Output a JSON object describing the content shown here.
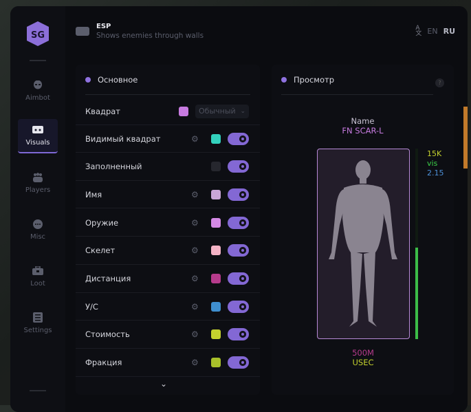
{
  "sidebar": {
    "logo": "SG",
    "items": [
      {
        "label": "Aimbot",
        "icon": "alien-icon",
        "active": false
      },
      {
        "label": "Visuals",
        "icon": "vr-goggles-icon",
        "active": true
      },
      {
        "label": "Players",
        "icon": "users-icon",
        "active": false
      },
      {
        "label": "Misc",
        "icon": "dots-icon",
        "active": false
      },
      {
        "label": "Loot",
        "icon": "briefcase-icon",
        "active": false
      },
      {
        "label": "Settings",
        "icon": "list-icon",
        "active": false
      }
    ]
  },
  "header": {
    "title": "ESP",
    "subtitle": "Shows enemies through walls"
  },
  "language": {
    "icon": "translate-icon",
    "options": [
      "EN",
      "RU"
    ],
    "selected": "RU"
  },
  "main_panel": {
    "title": "Основное",
    "box": {
      "label": "Квадрат",
      "color": "#c77be0",
      "mode": "Обычный"
    },
    "rows": [
      {
        "label": "Видимый квадрат",
        "color": "#33d1bd",
        "enabled": true,
        "settings": true
      },
      {
        "label": "Заполненный",
        "color": "#26272e",
        "enabled": true,
        "settings": false
      },
      {
        "label": "Имя",
        "color": "#c9a6d8",
        "enabled": true,
        "settings": true
      },
      {
        "label": "Оружие",
        "color": "#d58ae6",
        "enabled": true,
        "settings": true
      },
      {
        "label": "Скелет",
        "color": "#f4b3c6",
        "enabled": true,
        "settings": true
      },
      {
        "label": "Дистанция",
        "color": "#b63b8c",
        "enabled": true,
        "settings": true
      },
      {
        "label": "У/С",
        "color": "#3f8fcf",
        "enabled": true,
        "settings": true
      },
      {
        "label": "Стоимость",
        "color": "#c5d22e",
        "enabled": true,
        "settings": true
      },
      {
        "label": "Фракция",
        "color": "#a8c02a",
        "enabled": true,
        "settings": true
      }
    ]
  },
  "preview": {
    "title": "Просмотр",
    "help": "?",
    "name": "Name",
    "weapon": "FN SCAR-L",
    "value": "15K",
    "visibility": "vis",
    "kd": "2.15",
    "distance": "500M",
    "faction": "USEC",
    "health_percent": 48,
    "colors": {
      "name": "#c9c3d4",
      "weapon": "#c77be0",
      "value": "#c5d22e",
      "vis": "#3cd048",
      "kd": "#4d90d8",
      "distance": "#b63b8c",
      "faction": "#c5d22e",
      "box": "#b88ad8",
      "health": "#3cbd48"
    }
  }
}
